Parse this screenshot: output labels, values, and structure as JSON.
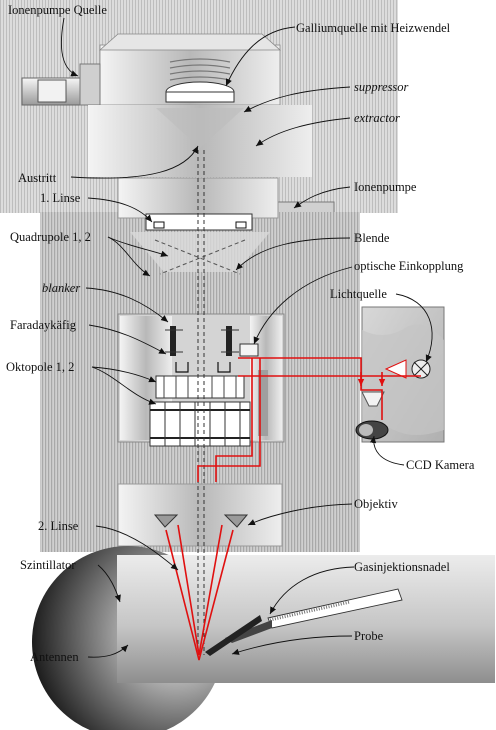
{
  "labels": {
    "ion_pump_source": "Ionenpumpe Quelle",
    "gallium_source": "Galliumquelle mit Heizwendel",
    "suppressor": "suppressor",
    "extractor": "extractor",
    "exit": "Austritt",
    "ion_pump": "Ionenpumpe",
    "lens_1": "1. Linse",
    "quadrupole": "Quadrupole 1, 2",
    "aperture": "Blende",
    "optical_coupling": "optische Einkopplung",
    "blanker": "blanker",
    "light_source": "Lichtquelle",
    "faraday_cup": "Faradaykäfig",
    "octopole": "Oktopole 1, 2",
    "ccd_camera": "CCD Kamera",
    "objective": "Objektiv",
    "lens_2": "2. Linse",
    "scintillator": "Szintillator",
    "gas_needle": "Gasinjektionsnadel",
    "antennas": "Antennen",
    "sample": "Probe"
  },
  "colors": {
    "beam": "#e01010",
    "metal_dark": "#6b6b6b",
    "metal_light": "#e8e8e8",
    "text": "#111111"
  }
}
